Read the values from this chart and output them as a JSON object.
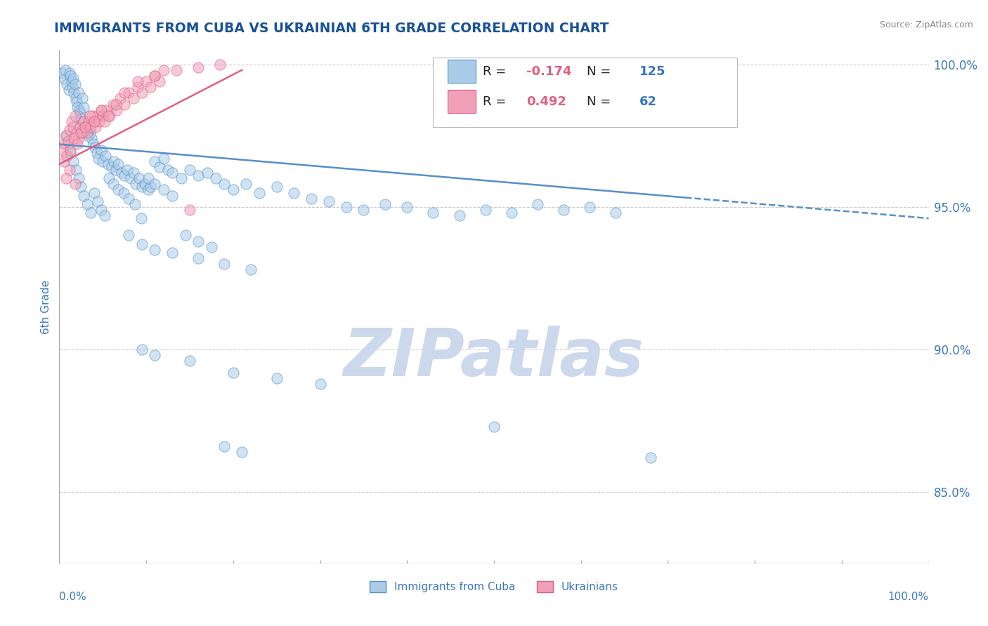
{
  "title": "IMMIGRANTS FROM CUBA VS UKRAINIAN 6TH GRADE CORRELATION CHART",
  "source": "Source: ZipAtlas.com",
  "ylabel": "6th Grade",
  "ylabel_right_labels": [
    "100.0%",
    "95.0%",
    "90.0%",
    "85.0%"
  ],
  "ylabel_right_values": [
    1.0,
    0.95,
    0.9,
    0.85
  ],
  "xmin": 0.0,
  "xmax": 1.0,
  "ymin": 0.825,
  "ymax": 1.005,
  "legend_blue_label": "Immigrants from Cuba",
  "legend_pink_label": "Ukrainians",
  "R_blue": -0.174,
  "N_blue": 125,
  "R_pink": 0.492,
  "N_pink": 62,
  "color_blue": "#aacce8",
  "color_pink": "#f0a0b8",
  "color_blue_line": "#5590c8",
  "color_pink_line": "#e06080",
  "color_title": "#1a5296",
  "color_axis_label": "#3a78c0",
  "watermark_text": "ZIPatlas",
  "watermark_color": "#ccd8ec",
  "background_color": "#ffffff",
  "grid_color": "#cccccc",
  "blue_line_solid_end": 0.72,
  "blue_line_start_y": 0.972,
  "blue_line_end_y": 0.946,
  "pink_line_start_x": 0.0,
  "pink_line_end_x": 0.21,
  "pink_line_start_y": 0.965,
  "pink_line_end_y": 0.998,
  "blue_x": [
    0.004,
    0.006,
    0.007,
    0.009,
    0.011,
    0.012,
    0.013,
    0.014,
    0.015,
    0.016,
    0.017,
    0.018,
    0.019,
    0.02,
    0.021,
    0.022,
    0.023,
    0.024,
    0.025,
    0.026,
    0.027,
    0.028,
    0.03,
    0.031,
    0.033,
    0.035,
    0.037,
    0.039,
    0.041,
    0.043,
    0.045,
    0.048,
    0.05,
    0.053,
    0.056,
    0.06,
    0.063,
    0.065,
    0.068,
    0.072,
    0.075,
    0.078,
    0.082,
    0.085,
    0.088,
    0.092,
    0.095,
    0.098,
    0.102,
    0.105,
    0.11,
    0.115,
    0.12,
    0.125,
    0.13,
    0.14,
    0.15,
    0.16,
    0.17,
    0.18,
    0.19,
    0.2,
    0.215,
    0.23,
    0.25,
    0.27,
    0.29,
    0.31,
    0.33,
    0.35,
    0.375,
    0.4,
    0.43,
    0.46,
    0.49,
    0.52,
    0.55,
    0.58,
    0.61,
    0.64,
    0.008,
    0.01,
    0.013,
    0.016,
    0.019,
    0.022,
    0.025,
    0.028,
    0.032,
    0.036,
    0.04,
    0.044,
    0.048,
    0.052,
    0.057,
    0.062,
    0.068,
    0.074,
    0.08,
    0.087,
    0.094,
    0.102,
    0.11,
    0.12,
    0.13,
    0.145,
    0.16,
    0.175,
    0.19,
    0.21,
    0.08,
    0.095,
    0.11,
    0.13,
    0.16,
    0.19,
    0.22,
    0.095,
    0.11,
    0.15,
    0.2,
    0.25,
    0.3,
    0.5,
    0.68
  ],
  "blue_y": [
    0.997,
    0.995,
    0.998,
    0.993,
    0.991,
    0.997,
    0.996,
    0.994,
    0.992,
    0.995,
    0.99,
    0.993,
    0.988,
    0.987,
    0.985,
    0.99,
    0.984,
    0.983,
    0.981,
    0.988,
    0.98,
    0.985,
    0.978,
    0.977,
    0.975,
    0.976,
    0.974,
    0.972,
    0.971,
    0.969,
    0.967,
    0.97,
    0.966,
    0.968,
    0.965,
    0.964,
    0.966,
    0.963,
    0.965,
    0.962,
    0.961,
    0.963,
    0.96,
    0.962,
    0.958,
    0.96,
    0.957,
    0.958,
    0.956,
    0.957,
    0.966,
    0.964,
    0.967,
    0.963,
    0.962,
    0.96,
    0.963,
    0.961,
    0.962,
    0.96,
    0.958,
    0.956,
    0.958,
    0.955,
    0.957,
    0.955,
    0.953,
    0.952,
    0.95,
    0.949,
    0.951,
    0.95,
    0.948,
    0.947,
    0.949,
    0.948,
    0.951,
    0.949,
    0.95,
    0.948,
    0.975,
    0.972,
    0.969,
    0.966,
    0.963,
    0.96,
    0.957,
    0.954,
    0.951,
    0.948,
    0.955,
    0.952,
    0.949,
    0.947,
    0.96,
    0.958,
    0.956,
    0.955,
    0.953,
    0.951,
    0.946,
    0.96,
    0.958,
    0.956,
    0.954,
    0.94,
    0.938,
    0.936,
    0.866,
    0.864,
    0.94,
    0.937,
    0.935,
    0.934,
    0.932,
    0.93,
    0.928,
    0.9,
    0.898,
    0.896,
    0.892,
    0.89,
    0.888,
    0.873,
    0.862
  ],
  "pink_x": [
    0.004,
    0.006,
    0.008,
    0.01,
    0.012,
    0.014,
    0.016,
    0.018,
    0.02,
    0.022,
    0.024,
    0.026,
    0.028,
    0.03,
    0.032,
    0.034,
    0.036,
    0.038,
    0.04,
    0.042,
    0.044,
    0.046,
    0.048,
    0.05,
    0.052,
    0.055,
    0.058,
    0.062,
    0.066,
    0.07,
    0.075,
    0.08,
    0.085,
    0.09,
    0.095,
    0.1,
    0.105,
    0.11,
    0.115,
    0.12,
    0.005,
    0.009,
    0.013,
    0.017,
    0.021,
    0.025,
    0.03,
    0.035,
    0.04,
    0.048,
    0.056,
    0.065,
    0.075,
    0.09,
    0.11,
    0.135,
    0.16,
    0.185,
    0.008,
    0.012,
    0.018,
    0.15
  ],
  "pink_y": [
    0.97,
    0.972,
    0.975,
    0.973,
    0.977,
    0.98,
    0.978,
    0.982,
    0.976,
    0.974,
    0.978,
    0.976,
    0.98,
    0.978,
    0.976,
    0.98,
    0.978,
    0.982,
    0.98,
    0.978,
    0.982,
    0.98,
    0.984,
    0.982,
    0.98,
    0.984,
    0.982,
    0.986,
    0.984,
    0.988,
    0.986,
    0.99,
    0.988,
    0.992,
    0.99,
    0.994,
    0.992,
    0.996,
    0.994,
    0.998,
    0.966,
    0.968,
    0.97,
    0.974,
    0.972,
    0.976,
    0.978,
    0.982,
    0.98,
    0.984,
    0.982,
    0.986,
    0.99,
    0.994,
    0.996,
    0.998,
    0.999,
    1.0,
    0.96,
    0.963,
    0.958,
    0.949
  ]
}
